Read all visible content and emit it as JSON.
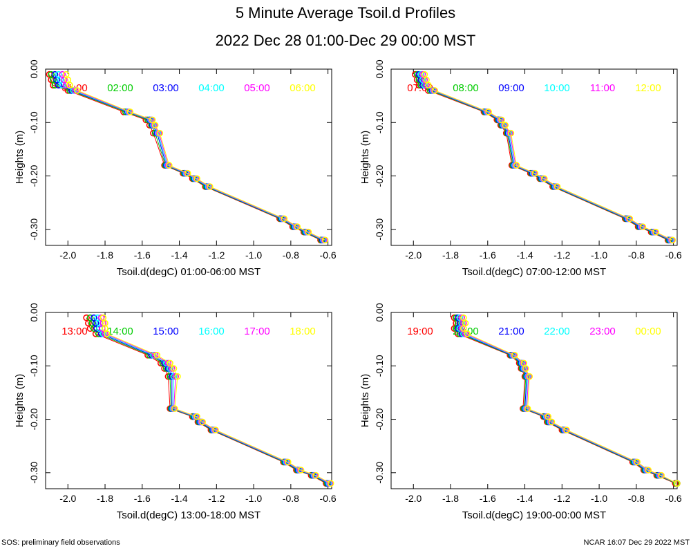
{
  "title": "5 Minute Average Tsoil.d Profiles",
  "subtitle": "2022 Dec 28 01:00-Dec 29 00:00 MST",
  "footer_left": "SOS: preliminary field observations",
  "footer_right": "NCAR 16:07 Dec 29 2022 MST",
  "series_colors": [
    "#ff0000",
    "#00cc00",
    "#0000ff",
    "#00ffff",
    "#ff00ff",
    "#ffff00"
  ],
  "chart_data": [
    {
      "type": "line",
      "xlabel": "Tsoil.d(degC) 01:00-06:00 MST",
      "ylabel": "Heights (m)",
      "xlim": [
        -2.12,
        -0.58
      ],
      "ylim": [
        -0.33,
        0.0
      ],
      "xticks": [
        -2.0,
        -1.8,
        -1.6,
        -1.4,
        -1.2,
        -1.0,
        -0.8,
        -0.6
      ],
      "xtick_labels": [
        "-2.0",
        "-1.8",
        "-1.6",
        "-1.4",
        "-1.2",
        "-1.0",
        "-0.8",
        "-0.6"
      ],
      "yticks": [
        0.0,
        -0.1,
        -0.2,
        -0.3
      ],
      "ytick_labels": [
        "0.00",
        "-0.10",
        "-0.20",
        "-0.30"
      ],
      "heights": [
        -0.01,
        -0.02,
        -0.03,
        -0.04,
        -0.08,
        -0.095,
        -0.105,
        -0.12,
        -0.18,
        -0.195,
        -0.205,
        -0.22,
        -0.28,
        -0.295,
        -0.305,
        -0.32
      ],
      "series": [
        {
          "name": "01:00",
          "values": [
            -2.1,
            -2.09,
            -2.08,
            -2.0,
            -1.7,
            -1.58,
            -1.56,
            -1.54,
            -1.48,
            -1.38,
            -1.33,
            -1.26,
            -0.86,
            -0.79,
            -0.73,
            -0.64
          ]
        },
        {
          "name": "02:00",
          "values": [
            -2.09,
            -2.08,
            -2.07,
            -1.99,
            -1.69,
            -1.57,
            -1.55,
            -1.53,
            -1.475,
            -1.375,
            -1.325,
            -1.255,
            -0.855,
            -0.785,
            -0.725,
            -0.635
          ]
        },
        {
          "name": "03:00",
          "values": [
            -2.07,
            -2.06,
            -2.05,
            -1.98,
            -1.68,
            -1.56,
            -1.545,
            -1.52,
            -1.47,
            -1.37,
            -1.32,
            -1.25,
            -0.85,
            -0.78,
            -0.72,
            -0.63
          ]
        },
        {
          "name": "04:00",
          "values": [
            -2.05,
            -2.04,
            -2.03,
            -1.97,
            -1.675,
            -1.555,
            -1.54,
            -1.515,
            -1.465,
            -1.365,
            -1.315,
            -1.245,
            -0.845,
            -0.775,
            -0.715,
            -0.625
          ]
        },
        {
          "name": "05:00",
          "values": [
            -2.03,
            -2.02,
            -2.01,
            -1.96,
            -1.67,
            -1.55,
            -1.535,
            -1.51,
            -1.46,
            -1.36,
            -1.31,
            -1.24,
            -0.84,
            -0.77,
            -0.71,
            -0.62
          ]
        },
        {
          "name": "06:00",
          "values": [
            -2.01,
            -2.0,
            -1.99,
            -1.95,
            -1.665,
            -1.545,
            -1.53,
            -1.505,
            -1.455,
            -1.355,
            -1.305,
            -1.235,
            -0.835,
            -0.765,
            -0.705,
            -0.615
          ]
        }
      ]
    },
    {
      "type": "line",
      "xlabel": "Tsoil.d(degC) 07:00-12:00 MST",
      "ylabel": "Heights (m)",
      "xlim": [
        -2.12,
        -0.58
      ],
      "ylim": [
        -0.33,
        0.0
      ],
      "xticks": [
        -2.0,
        -1.8,
        -1.6,
        -1.4,
        -1.2,
        -1.0,
        -0.8,
        -0.6
      ],
      "xtick_labels": [
        "-2.0",
        "-1.8",
        "-1.6",
        "-1.4",
        "-1.2",
        "-1.0",
        "-0.8",
        "-0.6"
      ],
      "yticks": [
        0.0,
        -0.1,
        -0.2,
        -0.3
      ],
      "ytick_labels": [
        "0.00",
        "-0.10",
        "-0.20",
        "-0.30"
      ],
      "heights": [
        -0.01,
        -0.02,
        -0.03,
        -0.04,
        -0.08,
        -0.095,
        -0.105,
        -0.12,
        -0.18,
        -0.195,
        -0.205,
        -0.22,
        -0.28,
        -0.295,
        -0.305,
        -0.32
      ],
      "series": [
        {
          "name": "07:00",
          "values": [
            -1.99,
            -1.98,
            -1.97,
            -1.92,
            -1.62,
            -1.55,
            -1.53,
            -1.5,
            -1.47,
            -1.37,
            -1.32,
            -1.25,
            -0.86,
            -0.79,
            -0.72,
            -0.63
          ]
        },
        {
          "name": "08:00",
          "values": [
            -1.98,
            -1.97,
            -1.96,
            -1.91,
            -1.615,
            -1.545,
            -1.525,
            -1.495,
            -1.465,
            -1.365,
            -1.315,
            -1.245,
            -0.855,
            -0.785,
            -0.715,
            -0.625
          ]
        },
        {
          "name": "09:00",
          "values": [
            -1.97,
            -1.96,
            -1.95,
            -1.9,
            -1.61,
            -1.54,
            -1.52,
            -1.49,
            -1.46,
            -1.36,
            -1.31,
            -1.24,
            -0.85,
            -0.78,
            -0.71,
            -0.62
          ]
        },
        {
          "name": "10:00",
          "values": [
            -1.96,
            -1.95,
            -1.94,
            -1.895,
            -1.605,
            -1.535,
            -1.515,
            -1.485,
            -1.455,
            -1.355,
            -1.305,
            -1.235,
            -0.845,
            -0.775,
            -0.705,
            -0.615
          ]
        },
        {
          "name": "11:00",
          "values": [
            -1.95,
            -1.94,
            -1.93,
            -1.89,
            -1.6,
            -1.53,
            -1.51,
            -1.48,
            -1.45,
            -1.35,
            -1.3,
            -1.23,
            -0.84,
            -0.77,
            -0.7,
            -0.61
          ]
        },
        {
          "name": "12:00",
          "values": [
            -1.94,
            -1.93,
            -1.92,
            -1.885,
            -1.595,
            -1.525,
            -1.505,
            -1.475,
            -1.445,
            -1.345,
            -1.295,
            -1.225,
            -0.835,
            -0.765,
            -0.695,
            -0.605
          ]
        }
      ]
    },
    {
      "type": "line",
      "xlabel": "Tsoil.d(degC) 13:00-18:00 MST",
      "ylabel": "Heights (m)",
      "xlim": [
        -2.12,
        -0.58
      ],
      "ylim": [
        -0.33,
        0.0
      ],
      "xticks": [
        -2.0,
        -1.8,
        -1.6,
        -1.4,
        -1.2,
        -1.0,
        -0.8,
        -0.6
      ],
      "xtick_labels": [
        "-2.0",
        "-1.8",
        "-1.6",
        "-1.4",
        "-1.2",
        "-1.0",
        "-0.8",
        "-0.6"
      ],
      "yticks": [
        0.0,
        -0.1,
        -0.2,
        -0.3
      ],
      "ytick_labels": [
        "0.00",
        "-0.10",
        "-0.20",
        "-0.30"
      ],
      "heights": [
        -0.01,
        -0.02,
        -0.03,
        -0.04,
        -0.08,
        -0.095,
        -0.105,
        -0.12,
        -0.18,
        -0.195,
        -0.205,
        -0.22,
        -0.28,
        -0.295,
        -0.305,
        -0.32
      ],
      "series": [
        {
          "name": "13:00",
          "values": [
            -1.9,
            -1.89,
            -1.88,
            -1.85,
            -1.57,
            -1.5,
            -1.48,
            -1.46,
            -1.45,
            -1.33,
            -1.3,
            -1.23,
            -0.84,
            -0.77,
            -0.69,
            -0.61
          ]
        },
        {
          "name": "14:00",
          "values": [
            -1.88,
            -1.87,
            -1.86,
            -1.835,
            -1.56,
            -1.49,
            -1.47,
            -1.45,
            -1.445,
            -1.325,
            -1.295,
            -1.225,
            -0.835,
            -0.765,
            -0.685,
            -0.605
          ]
        },
        {
          "name": "15:00",
          "values": [
            -1.86,
            -1.85,
            -1.845,
            -1.82,
            -1.55,
            -1.48,
            -1.46,
            -1.44,
            -1.44,
            -1.32,
            -1.29,
            -1.22,
            -0.83,
            -0.76,
            -0.68,
            -0.6
          ]
        },
        {
          "name": "16:00",
          "values": [
            -1.84,
            -1.83,
            -1.83,
            -1.81,
            -1.54,
            -1.47,
            -1.45,
            -1.43,
            -1.435,
            -1.315,
            -1.285,
            -1.215,
            -0.825,
            -0.755,
            -0.675,
            -0.595
          ]
        },
        {
          "name": "17:00",
          "values": [
            -1.82,
            -1.81,
            -1.815,
            -1.8,
            -1.53,
            -1.46,
            -1.44,
            -1.42,
            -1.43,
            -1.31,
            -1.28,
            -1.21,
            -0.82,
            -0.75,
            -0.67,
            -0.59
          ]
        },
        {
          "name": "18:00",
          "values": [
            -1.81,
            -1.8,
            -1.8,
            -1.79,
            -1.52,
            -1.45,
            -1.43,
            -1.41,
            -1.425,
            -1.305,
            -1.275,
            -1.205,
            -0.815,
            -0.745,
            -0.665,
            -0.585
          ]
        }
      ]
    },
    {
      "type": "line",
      "xlabel": "Tsoil.d(degC) 19:00-00:00 MST",
      "ylabel": "Heights (m)",
      "xlim": [
        -2.12,
        -0.58
      ],
      "ylim": [
        -0.33,
        0.0
      ],
      "xticks": [
        -2.0,
        -1.8,
        -1.6,
        -1.4,
        -1.2,
        -1.0,
        -0.8,
        -0.6
      ],
      "xtick_labels": [
        "-2.0",
        "-1.8",
        "-1.6",
        "-1.4",
        "-1.2",
        "-1.0",
        "-0.8",
        "-0.6"
      ],
      "yticks": [
        0.0,
        -0.1,
        -0.2,
        -0.3
      ],
      "ytick_labels": [
        "0.00",
        "-0.10",
        "-0.20",
        "-0.30"
      ],
      "heights": [
        -0.01,
        -0.02,
        -0.03,
        -0.04,
        -0.08,
        -0.095,
        -0.105,
        -0.12,
        -0.18,
        -0.195,
        -0.205,
        -0.22,
        -0.28,
        -0.295,
        -0.305,
        -0.32
      ],
      "series": [
        {
          "name": "19:00",
          "values": [
            -1.78,
            -1.77,
            -1.78,
            -1.76,
            -1.48,
            -1.43,
            -1.42,
            -1.4,
            -1.41,
            -1.3,
            -1.28,
            -1.2,
            -0.82,
            -0.76,
            -0.69,
            -0.59
          ]
        },
        {
          "name": "20:00",
          "values": [
            -1.77,
            -1.76,
            -1.77,
            -1.75,
            -1.475,
            -1.425,
            -1.415,
            -1.395,
            -1.405,
            -1.295,
            -1.275,
            -1.195,
            -0.815,
            -0.755,
            -0.685,
            -0.585
          ]
        },
        {
          "name": "21:00",
          "values": [
            -1.76,
            -1.75,
            -1.76,
            -1.74,
            -1.47,
            -1.42,
            -1.41,
            -1.39,
            -1.4,
            -1.29,
            -1.27,
            -1.19,
            -0.81,
            -0.75,
            -0.68,
            -0.58
          ]
        },
        {
          "name": "22:00",
          "values": [
            -1.75,
            -1.74,
            -1.75,
            -1.73,
            -1.465,
            -1.415,
            -1.405,
            -1.385,
            -1.395,
            -1.285,
            -1.265,
            -1.185,
            -0.805,
            -0.745,
            -0.675,
            -0.58
          ]
        },
        {
          "name": "23:00",
          "values": [
            -1.74,
            -1.73,
            -1.74,
            -1.72,
            -1.46,
            -1.41,
            -1.4,
            -1.38,
            -1.39,
            -1.28,
            -1.26,
            -1.18,
            -0.8,
            -0.74,
            -0.67,
            -0.58
          ]
        },
        {
          "name": "00:00",
          "values": [
            -1.73,
            -1.72,
            -1.73,
            -1.71,
            -1.455,
            -1.405,
            -1.395,
            -1.375,
            -1.385,
            -1.275,
            -1.255,
            -1.175,
            -0.795,
            -0.735,
            -0.665,
            -0.58
          ]
        }
      ]
    }
  ]
}
